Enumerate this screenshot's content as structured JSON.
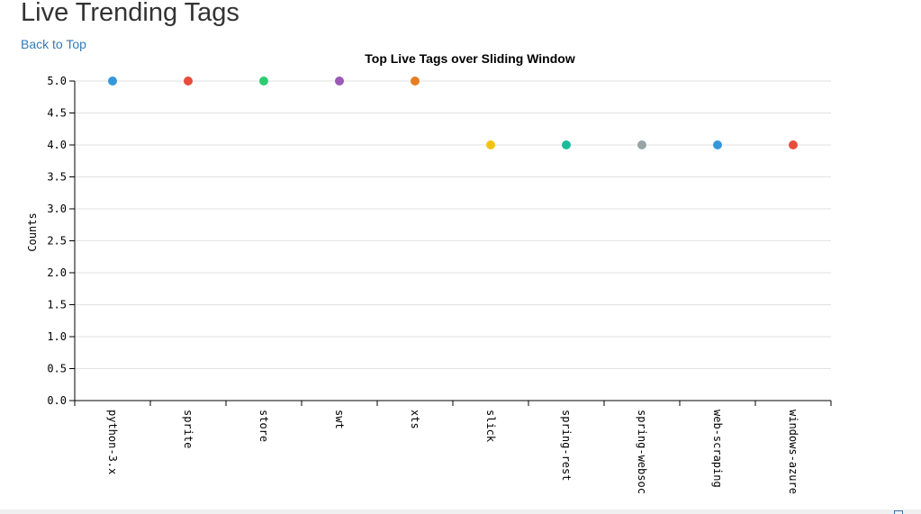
{
  "page": {
    "title": "Live Trending Tags",
    "back_link": "Back to Top"
  },
  "chart_data": {
    "type": "scatter",
    "title": "Top Live Tags over Sliding Window",
    "xlabel": "",
    "ylabel": "Counts",
    "ylim": [
      0,
      5
    ],
    "y_ticks": [
      "0.0",
      "0.5",
      "1.0",
      "1.5",
      "2.0",
      "2.5",
      "3.0",
      "3.5",
      "4.0",
      "4.5",
      "5.0"
    ],
    "grid": true,
    "categories": [
      "python-3.x",
      "sprite",
      "store",
      "swt",
      "xts",
      "slick",
      "spring-rest",
      "spring-websoc",
      "web-scraping",
      "windows-azure"
    ],
    "values": [
      5,
      5,
      5,
      5,
      5,
      4,
      4,
      4,
      4,
      4
    ],
    "colors": [
      "#3498db",
      "#e74c3c",
      "#2ecc71",
      "#9b59b6",
      "#e67e22",
      "#f1c40f",
      "#1abc9c",
      "#95a5a6",
      "#3498db",
      "#e74c3c"
    ]
  }
}
